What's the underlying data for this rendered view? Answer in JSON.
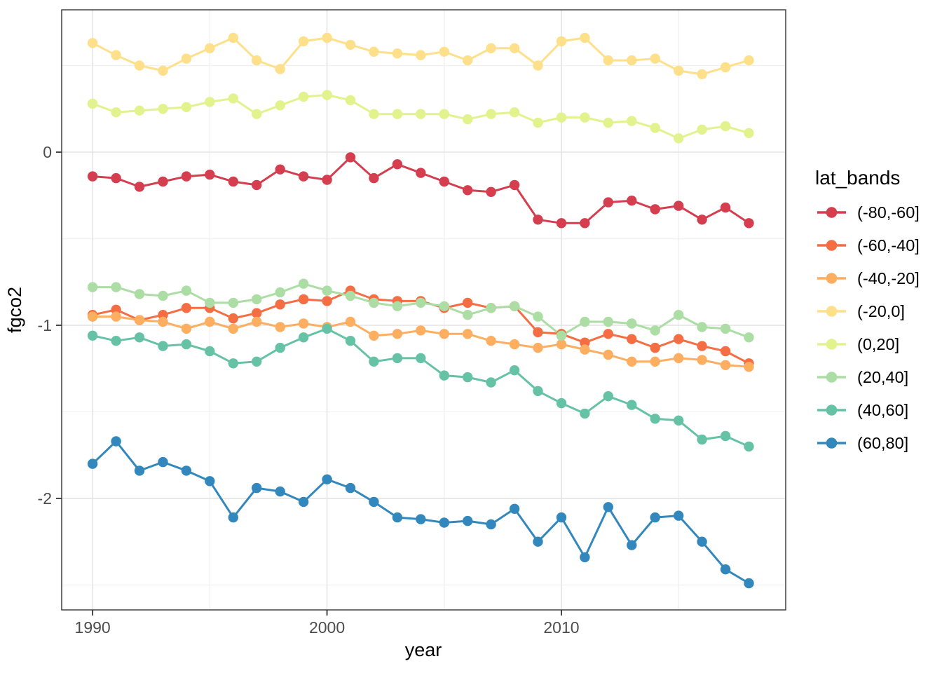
{
  "chart_data": {
    "type": "line",
    "title": "",
    "xlabel": "year",
    "ylabel": "fgco2",
    "legend_title": "lat_bands",
    "legend_position": "right",
    "grid": true,
    "x_ticks": [
      1990,
      2000,
      2010
    ],
    "x_minor": [
      1995,
      2005,
      2015
    ],
    "y_ticks": [
      0,
      -1,
      -2
    ],
    "y_minor": [
      0.5,
      -0.5,
      -1.5,
      -2.5
    ],
    "xlim": [
      1988.68,
      2019.57
    ],
    "ylim": [
      -2.644,
      0.822
    ],
    "x": [
      1990,
      1991,
      1992,
      1993,
      1994,
      1995,
      1996,
      1997,
      1998,
      1999,
      2000,
      2001,
      2002,
      2003,
      2004,
      2005,
      2006,
      2007,
      2008,
      2009,
      2010,
      2011,
      2012,
      2013,
      2014,
      2015,
      2016,
      2017,
      2018
    ],
    "series": [
      {
        "name": "(-80,-60]",
        "color": "#d53e4f",
        "values": [
          -0.14,
          -0.15,
          -0.2,
          -0.17,
          -0.14,
          -0.13,
          -0.17,
          -0.19,
          -0.1,
          -0.14,
          -0.16,
          -0.03,
          -0.15,
          -0.07,
          -0.12,
          -0.17,
          -0.22,
          -0.23,
          -0.19,
          -0.39,
          -0.41,
          -0.41,
          -0.29,
          -0.28,
          -0.33,
          -0.31,
          -0.39,
          -0.32,
          -0.41
        ]
      },
      {
        "name": "(-60,-40]",
        "color": "#f46d43",
        "values": [
          -0.94,
          -0.91,
          -0.97,
          -0.94,
          -0.9,
          -0.9,
          -0.96,
          -0.93,
          -0.88,
          -0.85,
          -0.86,
          -0.8,
          -0.85,
          -0.86,
          -0.86,
          -0.9,
          -0.87,
          -0.9,
          -0.89,
          -1.04,
          -1.05,
          -1.1,
          -1.05,
          -1.08,
          -1.13,
          -1.08,
          -1.12,
          -1.15,
          -1.22
        ]
      },
      {
        "name": "(-40,-20]",
        "color": "#fdae61",
        "values": [
          -0.95,
          -0.95,
          -0.97,
          -0.98,
          -1.02,
          -0.98,
          -1.02,
          -0.98,
          -1.01,
          -0.99,
          -1.01,
          -0.98,
          -1.06,
          -1.05,
          -1.03,
          -1.05,
          -1.05,
          -1.09,
          -1.11,
          -1.13,
          -1.11,
          -1.14,
          -1.17,
          -1.21,
          -1.21,
          -1.19,
          -1.2,
          -1.23,
          -1.24
        ]
      },
      {
        "name": "(-20,0]",
        "color": "#fee08b",
        "values": [
          0.63,
          0.56,
          0.5,
          0.47,
          0.54,
          0.6,
          0.66,
          0.53,
          0.48,
          0.64,
          0.66,
          0.62,
          0.58,
          0.57,
          0.56,
          0.58,
          0.53,
          0.6,
          0.6,
          0.5,
          0.64,
          0.66,
          0.53,
          0.53,
          0.54,
          0.47,
          0.45,
          0.49,
          0.53
        ]
      },
      {
        "name": "(0,20]",
        "color": "#e2f28c",
        "values": [
          0.28,
          0.23,
          0.24,
          0.25,
          0.26,
          0.29,
          0.31,
          0.22,
          0.27,
          0.32,
          0.33,
          0.3,
          0.22,
          0.22,
          0.22,
          0.22,
          0.19,
          0.22,
          0.23,
          0.17,
          0.2,
          0.2,
          0.17,
          0.18,
          0.14,
          0.08,
          0.13,
          0.15,
          0.11
        ]
      },
      {
        "name": "(20,40]",
        "color": "#abdda4",
        "values": [
          -0.78,
          -0.78,
          -0.82,
          -0.83,
          -0.8,
          -0.87,
          -0.87,
          -0.85,
          -0.81,
          -0.76,
          -0.8,
          -0.83,
          -0.87,
          -0.89,
          -0.87,
          -0.89,
          -0.94,
          -0.9,
          -0.89,
          -0.95,
          -1.06,
          -0.98,
          -0.98,
          -0.99,
          -1.03,
          -0.94,
          -1.01,
          -1.02,
          -1.07
        ]
      },
      {
        "name": "(40,60]",
        "color": "#66c2a5",
        "values": [
          -1.06,
          -1.09,
          -1.07,
          -1.12,
          -1.11,
          -1.15,
          -1.22,
          -1.21,
          -1.13,
          -1.07,
          -1.02,
          -1.09,
          -1.21,
          -1.19,
          -1.19,
          -1.29,
          -1.3,
          -1.33,
          -1.26,
          -1.38,
          -1.45,
          -1.51,
          -1.41,
          -1.46,
          -1.54,
          -1.55,
          -1.66,
          -1.64,
          -1.7
        ]
      },
      {
        "name": "(60,80]",
        "color": "#3288bd",
        "values": [
          -1.8,
          -1.67,
          -1.84,
          -1.79,
          -1.84,
          -1.9,
          -2.11,
          -1.94,
          -1.96,
          -2.02,
          -1.89,
          -1.94,
          -2.02,
          -2.11,
          -2.12,
          -2.14,
          -2.13,
          -2.15,
          -2.06,
          -2.25,
          -2.11,
          -2.34,
          -2.05,
          -2.27,
          -2.11,
          -2.1,
          -2.25,
          -2.41,
          -2.49
        ]
      }
    ]
  },
  "style": {
    "panel_background": "#ffffff",
    "panel_border": "#404040",
    "grid_major": "#e4e4e4",
    "grid_minor": "#f1f1f1",
    "tick_mark": "#333333",
    "tick_label": "#4d4d4d",
    "axis_title": "#000000",
    "legend_text": "#000000"
  }
}
